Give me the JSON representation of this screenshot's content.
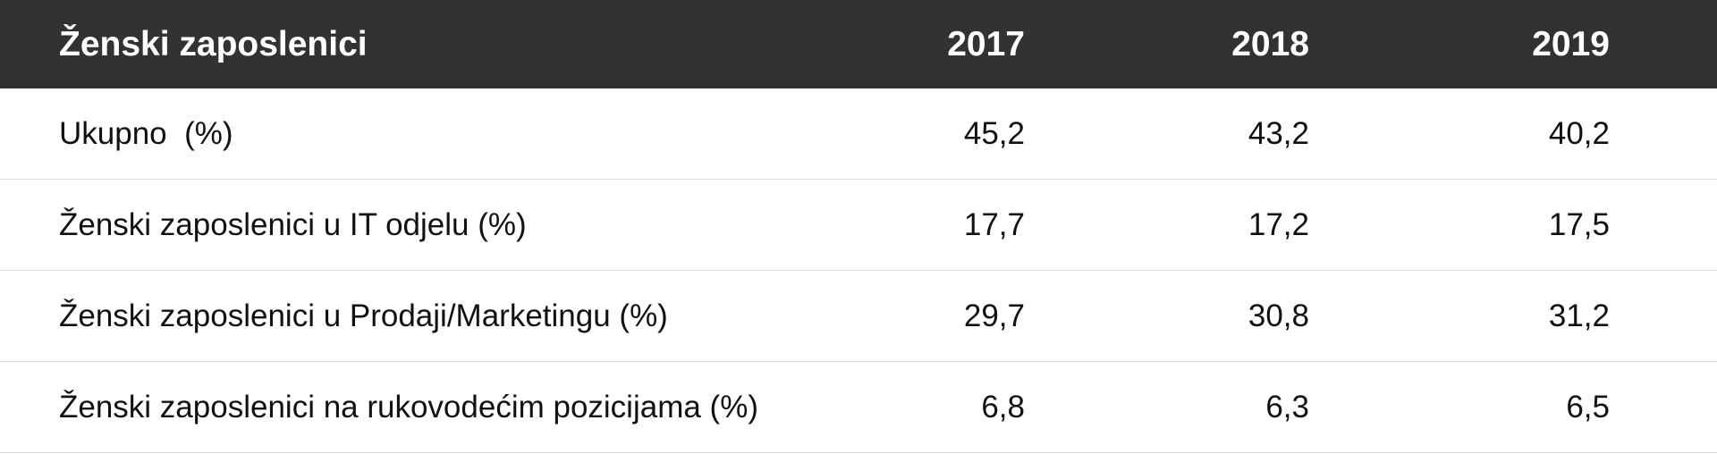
{
  "table": {
    "header": [
      "Ženski zaposlenici",
      "2017",
      "2018",
      "2019"
    ],
    "rows": [
      [
        "Ukupno  (%)",
        "45,2",
        "43,2",
        "40,2"
      ],
      [
        "Ženski zaposlenici u IT odjelu (%)",
        "17,7",
        "17,2",
        "17,5"
      ],
      [
        "Ženski zaposlenici u Prodaji/Marketingu (%)",
        "29,7",
        "30,8",
        "31,2"
      ],
      [
        "Ženski zaposlenici na rukovodećim pozicijama (%)",
        "6,8",
        "6,3",
        "6,5"
      ]
    ]
  }
}
